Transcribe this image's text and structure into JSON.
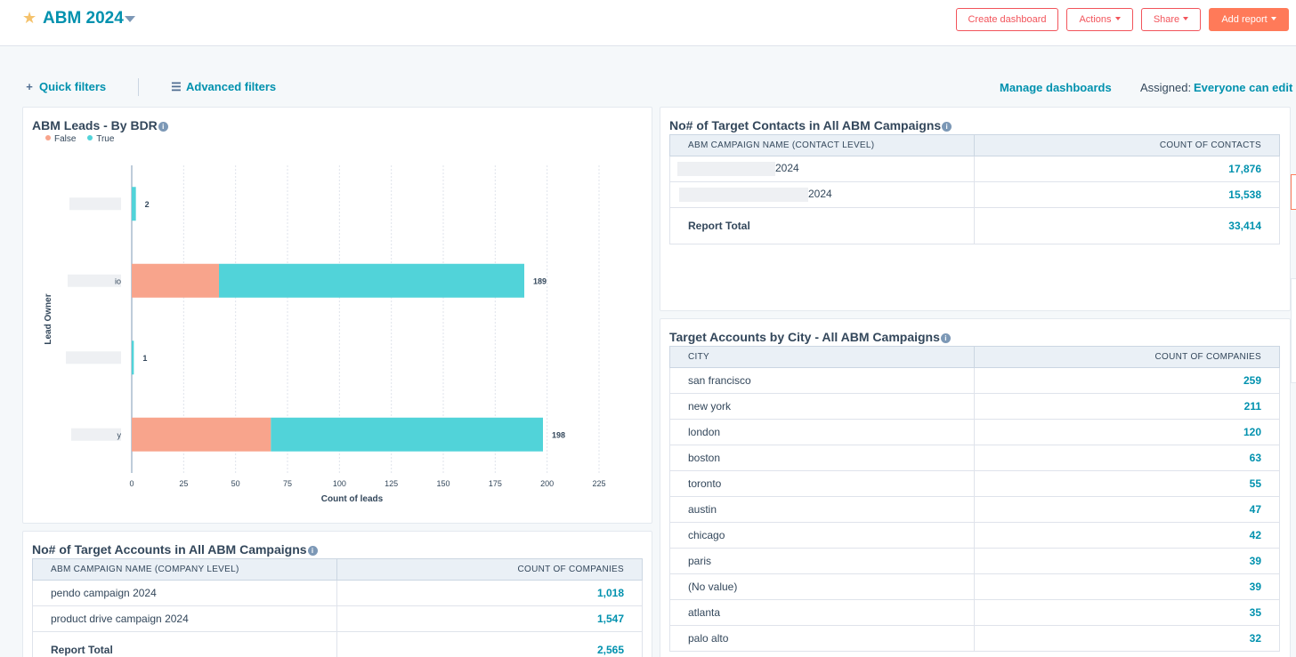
{
  "header": {
    "title": "ABM 2024",
    "buttons": {
      "create": "Create dashboard",
      "actions": "Actions",
      "share": "Share",
      "add_report": "Add report"
    }
  },
  "filters": {
    "quick": "Quick filters",
    "advanced": "Advanced filters",
    "manage": "Manage dashboards",
    "assigned_label": "Assigned:",
    "assigned_value": "Everyone can edit"
  },
  "leads_chart": {
    "title": "ABM Leads - By BDR",
    "legend": [
      "False",
      "True"
    ]
  },
  "chart_data": {
    "type": "bar",
    "orientation": "horizontal",
    "stacked": true,
    "title": "ABM Leads - By BDR",
    "xlabel": "Count of leads",
    "ylabel": "Lead Owner",
    "xlim": [
      0,
      225
    ],
    "xticks": [
      0,
      25,
      50,
      75,
      100,
      125,
      150,
      175,
      200,
      225
    ],
    "grid": true,
    "legend_position": "top-left",
    "colors": {
      "False": "#f8a48c",
      "True": "#51d3d9"
    },
    "categories": [
      "",
      "",
      "",
      ""
    ],
    "category_fragments": [
      "",
      "io",
      "",
      "y"
    ],
    "series": [
      {
        "name": "False",
        "values": [
          0,
          42,
          0,
          67
        ]
      },
      {
        "name": "True",
        "values": [
          2,
          147,
          1,
          131
        ]
      }
    ],
    "totals": [
      2,
      189,
      1,
      198
    ]
  },
  "contacts_table": {
    "title": "No# of Target Contacts in All ABM Campaigns",
    "headers": [
      "ABM CAMPAIGN NAME (CONTACT LEVEL)",
      "COUNT OF CONTACTS"
    ],
    "rows": [
      {
        "name": "2024",
        "value": "17,876"
      },
      {
        "name": "2024",
        "value": "15,538"
      }
    ],
    "total_label": "Report Total",
    "total_value": "33,414"
  },
  "city_table": {
    "title": "Target Accounts by City - All ABM Campaigns",
    "headers": [
      "CITY",
      "COUNT OF COMPANIES"
    ],
    "rows": [
      {
        "name": "san francisco",
        "value": "259"
      },
      {
        "name": "new york",
        "value": "211"
      },
      {
        "name": "london",
        "value": "120"
      },
      {
        "name": "boston",
        "value": "63"
      },
      {
        "name": "toronto",
        "value": "55"
      },
      {
        "name": "austin",
        "value": "47"
      },
      {
        "name": "chicago",
        "value": "42"
      },
      {
        "name": "paris",
        "value": "39"
      },
      {
        "name": "(No value)",
        "value": "39"
      },
      {
        "name": "atlanta",
        "value": "35"
      },
      {
        "name": "palo alto",
        "value": "32"
      }
    ]
  },
  "accounts_table": {
    "title": "No# of Target Accounts in All ABM Campaigns",
    "headers": [
      "ABM CAMPAIGN NAME (COMPANY LEVEL)",
      "COUNT OF COMPANIES"
    ],
    "rows": [
      {
        "name": "pendo campaign 2024",
        "value": "1,018"
      },
      {
        "name": "product drive campaign 2024",
        "value": "1,547"
      }
    ],
    "total_label": "Report Total",
    "total_value": "2,565"
  },
  "colors": {
    "accent": "#0091ae",
    "primary_button": "#ff7a59",
    "false_series": "#f8a48c",
    "true_series": "#51d3d9"
  }
}
